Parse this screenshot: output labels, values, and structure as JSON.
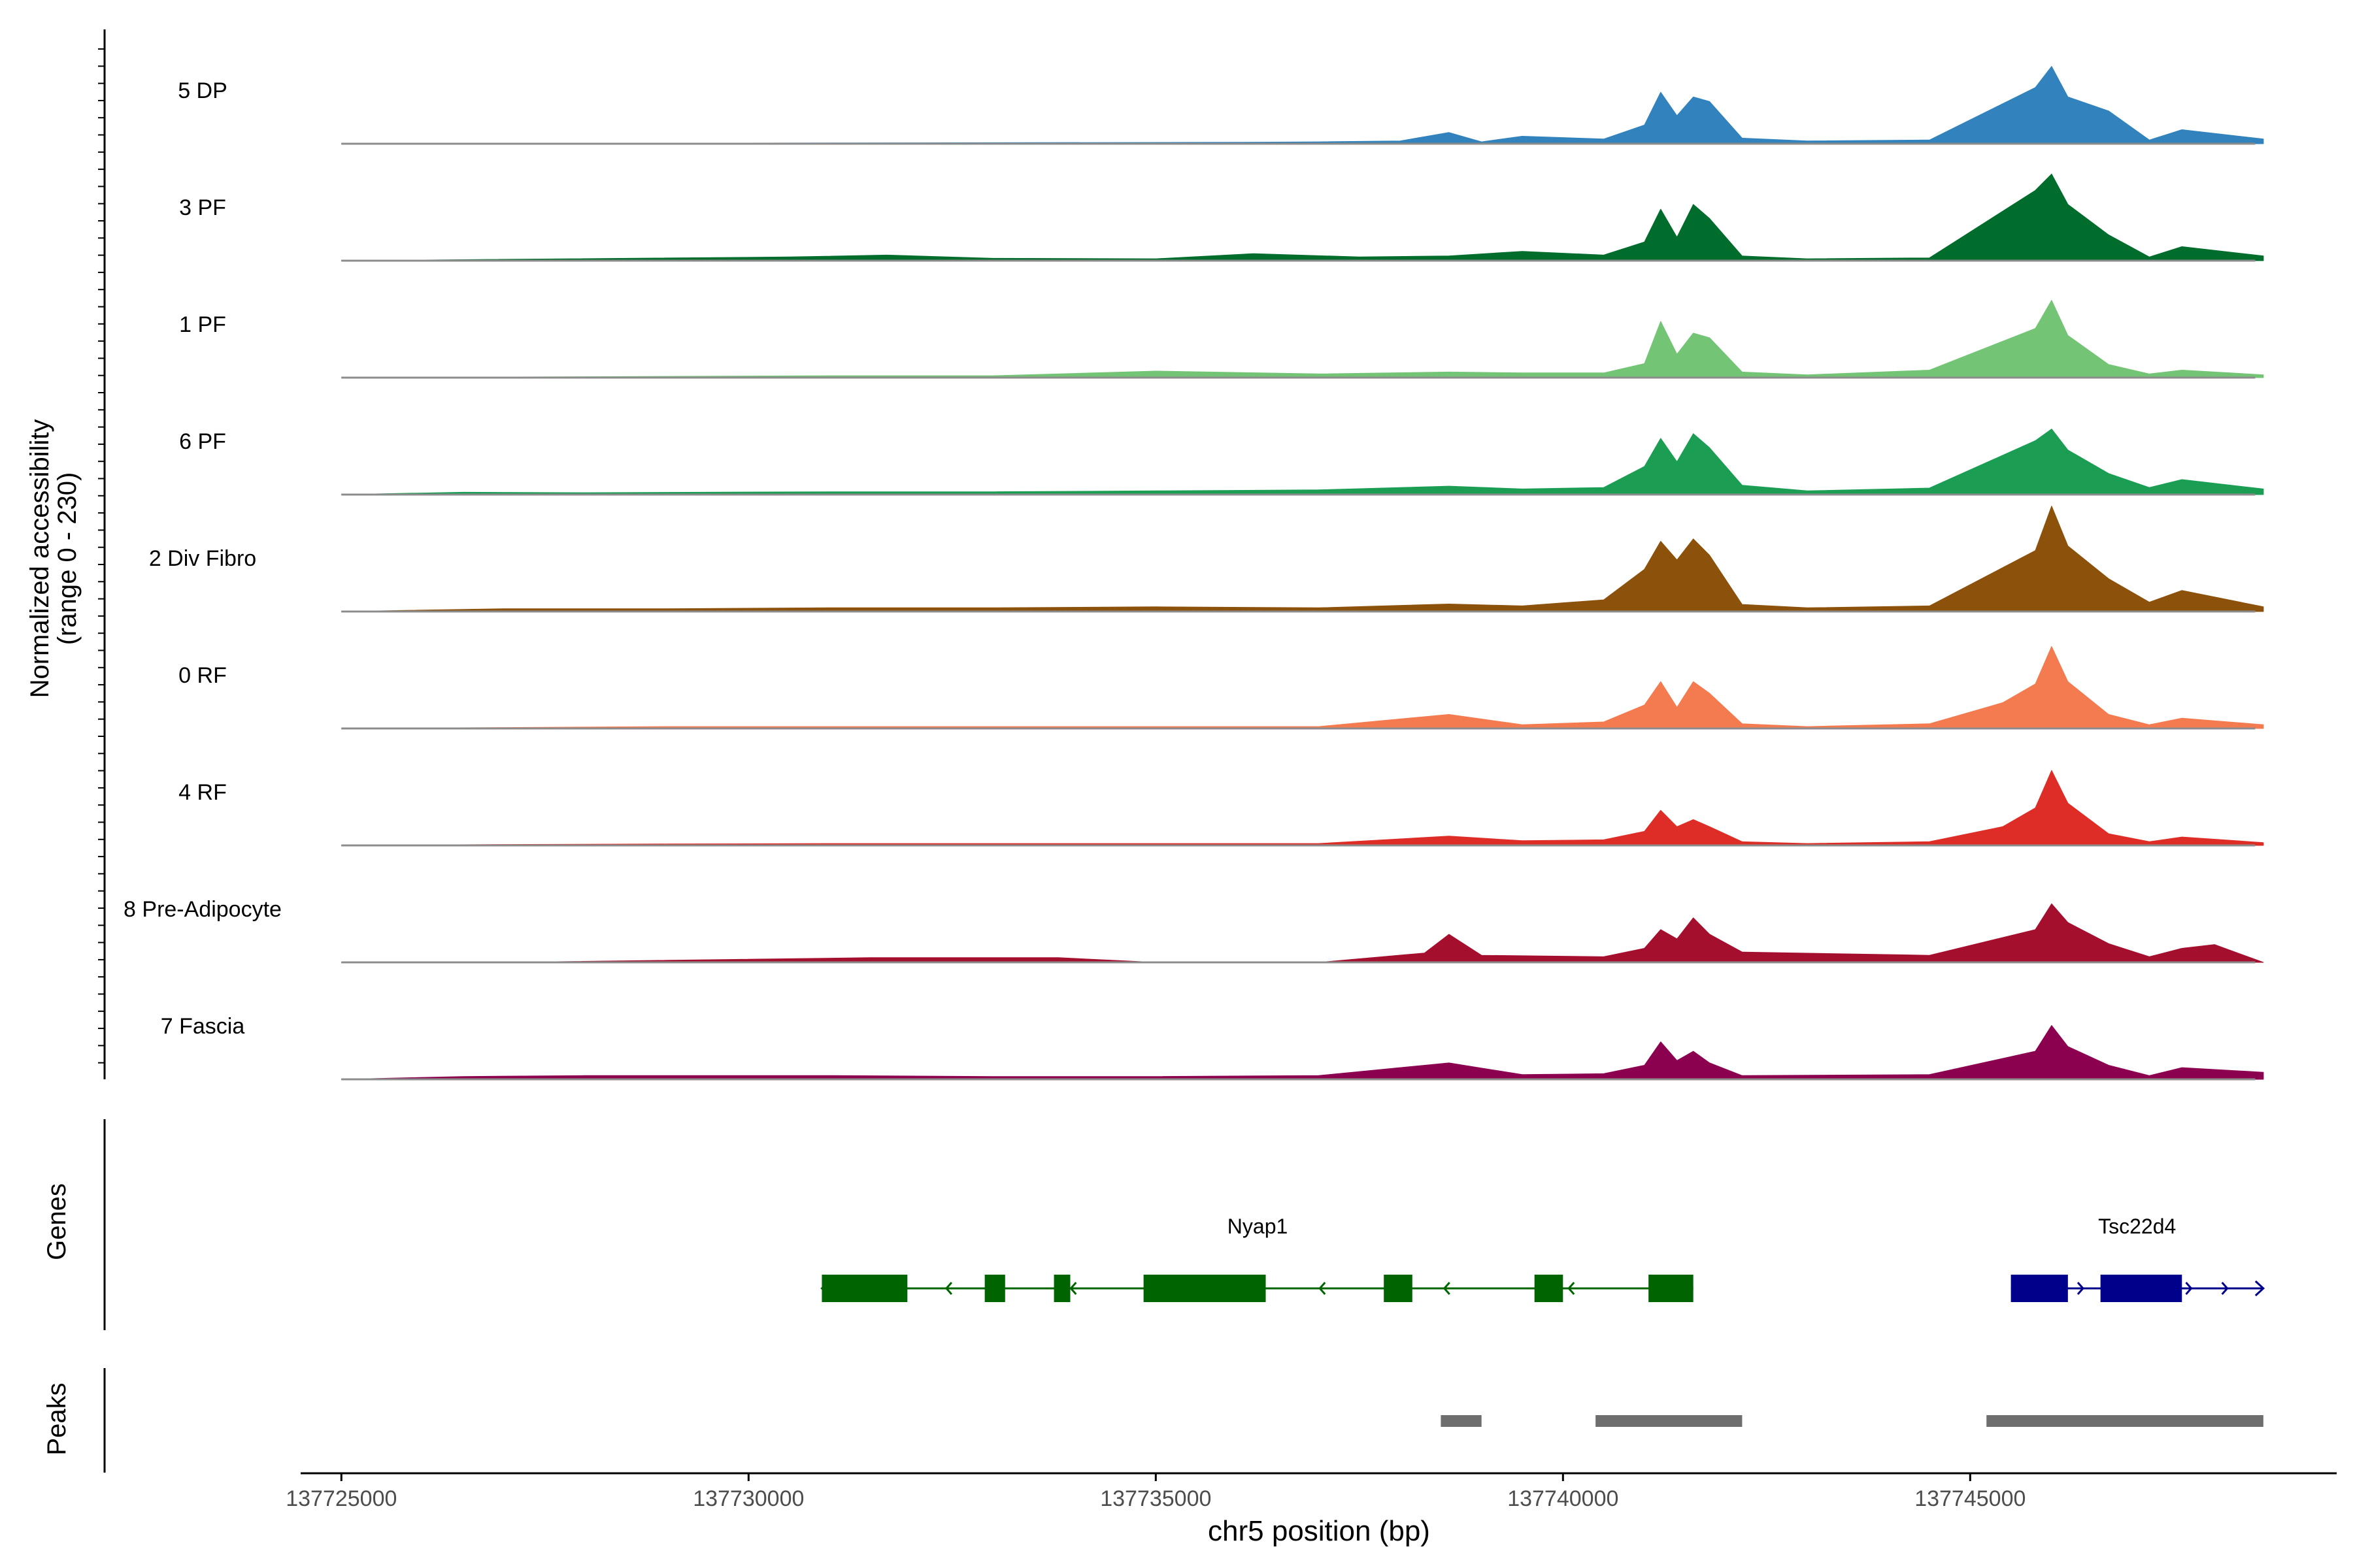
{
  "chart_data": {
    "type": "area",
    "chromosome": "chr5",
    "xlim": [
      137724500,
      137749500
    ],
    "xticks": [
      137725000,
      137730000,
      137735000,
      137740000,
      137745000
    ],
    "tick_labels": [
      "137725000",
      "137730000",
      "137735000",
      "137740000",
      "137745000"
    ],
    "xlabel": "chr5 position (bp)",
    "ylabel_line1": "Normalized accessibility",
    "ylabel_line2": "(range 0 - 230)",
    "ylim": [
      0,
      230
    ],
    "track_labels": {
      "genes": "Genes",
      "peaks": "Peaks"
    },
    "series": [
      {
        "name": "5 DP",
        "color": "#3182bd",
        "x": [
          137725000,
          137728000,
          137732000,
          137736000,
          137737000,
          137738000,
          137738600,
          137739000,
          137739500,
          137740500,
          137741000,
          137741200,
          137741400,
          137741600,
          137741800,
          137742200,
          137743000,
          137744500,
          137745800,
          137746000,
          137746200,
          137746700,
          137747200,
          137747600,
          137748600
        ],
        "values": [
          0,
          1,
          2,
          3,
          4,
          6,
          24,
          4,
          16,
          10,
          40,
          110,
          60,
          100,
          90,
          12,
          6,
          8,
          120,
          165,
          100,
          70,
          8,
          30,
          10
        ]
      },
      {
        "name": "3 PF",
        "color": "#006d2c",
        "x": [
          137725000,
          137730500,
          137731700,
          137733000,
          137735000,
          137736200,
          137737500,
          137738600,
          137739500,
          137740500,
          137741000,
          137741200,
          137741400,
          137741600,
          137741800,
          137742200,
          137743000,
          137744500,
          137745800,
          137746000,
          137746200,
          137746700,
          137747200,
          137747600,
          137748600
        ],
        "values": [
          0,
          8,
          12,
          5,
          4,
          15,
          8,
          10,
          20,
          12,
          40,
          110,
          50,
          120,
          90,
          10,
          4,
          6,
          150,
          185,
          120,
          55,
          8,
          30,
          10
        ]
      },
      {
        "name": "1 PF",
        "color": "#74c476",
        "x": [
          137725000,
          137728000,
          137731000,
          137733000,
          137735000,
          137737000,
          137738600,
          137739500,
          137740500,
          137741000,
          137741200,
          137741400,
          137741600,
          137741800,
          137742200,
          137743000,
          137744500,
          137745800,
          137746000,
          137746200,
          137746700,
          137747200,
          137747600,
          137748600
        ],
        "values": [
          0,
          2,
          4,
          4,
          14,
          8,
          12,
          10,
          10,
          30,
          120,
          50,
          95,
          85,
          12,
          6,
          16,
          105,
          165,
          90,
          28,
          8,
          16,
          6
        ]
      },
      {
        "name": "6 PF",
        "color": "#1b9e54",
        "x": [
          137725000,
          137726500,
          137728000,
          137731000,
          137733000,
          137735000,
          137737000,
          137738600,
          137739500,
          137740500,
          137741000,
          137741200,
          137741400,
          137741600,
          137741800,
          137742200,
          137743000,
          137744500,
          137745800,
          137746000,
          137746200,
          137746700,
          137747200,
          137747600,
          137748600
        ],
        "values": [
          0,
          5,
          4,
          6,
          6,
          8,
          10,
          18,
          12,
          15,
          60,
          120,
          70,
          130,
          100,
          20,
          8,
          14,
          115,
          140,
          95,
          45,
          15,
          32,
          12
        ]
      },
      {
        "name": "2 Div Fibro",
        "color": "#8c510a",
        "x": [
          137725000,
          137727000,
          137729000,
          137731000,
          137733000,
          137735000,
          137737000,
          137738600,
          137739500,
          137740500,
          137741000,
          137741200,
          137741400,
          137741600,
          137741800,
          137742200,
          137743000,
          137744500,
          137745800,
          137746000,
          137746200,
          137746700,
          137747200,
          137747600,
          137748600
        ],
        "values": [
          0,
          6,
          6,
          8,
          8,
          10,
          8,
          16,
          12,
          25,
          90,
          150,
          110,
          155,
          120,
          15,
          8,
          12,
          130,
          225,
          140,
          70,
          20,
          45,
          10
        ]
      },
      {
        "name": "0 RF",
        "color": "#f47a4f",
        "x": [
          137725000,
          137727000,
          137729000,
          137731000,
          137733000,
          137735000,
          137737000,
          137738600,
          137739500,
          137740500,
          137741000,
          137741200,
          137741400,
          137741600,
          137741800,
          137742200,
          137743000,
          137744500,
          137745400,
          137745800,
          137746000,
          137746200,
          137746700,
          137747200,
          137747600,
          137748600
        ],
        "values": [
          0,
          2,
          4,
          4,
          4,
          4,
          4,
          30,
          8,
          14,
          50,
          100,
          45,
          100,
          75,
          10,
          4,
          10,
          55,
          95,
          175,
          100,
          30,
          8,
          22,
          8
        ]
      },
      {
        "name": "4 RF",
        "color": "#de2d26",
        "x": [
          137725000,
          137727000,
          137729000,
          137731000,
          137733000,
          137735000,
          137737000,
          137738600,
          137739500,
          137740500,
          137741000,
          137741200,
          137741400,
          137741600,
          137741800,
          137742200,
          137743000,
          137744500,
          137745400,
          137745800,
          137746000,
          137746200,
          137746700,
          137747200,
          137747600,
          137748600
        ],
        "values": [
          0,
          2,
          3,
          4,
          4,
          4,
          4,
          20,
          10,
          12,
          30,
          75,
          40,
          55,
          40,
          8,
          4,
          8,
          40,
          80,
          160,
          90,
          25,
          8,
          18,
          6
        ]
      },
      {
        "name": "8 Pre-Adipocyte",
        "color": "#a50f2e",
        "x": [
          137725000,
          137727000,
          137731500,
          137732000,
          137733800,
          137735000,
          137737000,
          137738300,
          137738600,
          137739000,
          137740500,
          137741000,
          137741200,
          137741400,
          137741600,
          137741800,
          137742200,
          137744500,
          137745800,
          137746000,
          137746200,
          137746700,
          137747200,
          137747600,
          137748000,
          137748600
        ],
        "values": [
          0,
          0,
          10,
          10,
          10,
          0,
          0,
          20,
          60,
          15,
          12,
          30,
          70,
          50,
          95,
          60,
          22,
          15,
          70,
          125,
          85,
          40,
          12,
          30,
          38,
          0
        ]
      },
      {
        "name": "7 Fascia",
        "color": "#8c0050",
        "x": [
          137725000,
          137726500,
          137728000,
          137731000,
          137733000,
          137735000,
          137737000,
          137738600,
          137739500,
          137740500,
          137741000,
          137741200,
          137741400,
          137741600,
          137741800,
          137742200,
          137744500,
          137745800,
          137746000,
          137746200,
          137746700,
          137747200,
          137747600,
          137748600
        ],
        "values": [
          0,
          6,
          8,
          8,
          6,
          6,
          8,
          35,
          10,
          12,
          30,
          80,
          40,
          60,
          35,
          8,
          10,
          60,
          115,
          70,
          30,
          8,
          25,
          15
        ]
      }
    ],
    "genes": [
      {
        "name": "Nyap1",
        "strand": "-",
        "start": 137730900,
        "end": 137741600,
        "color": "#006400",
        "exons": [
          [
            137730900,
            137731950
          ],
          [
            137732900,
            137733150
          ],
          [
            137733750,
            137733950
          ],
          [
            137734850,
            137736350
          ],
          [
            137737800,
            137738150
          ],
          [
            137739650,
            137740000
          ],
          [
            137741050,
            137741600
          ]
        ]
      },
      {
        "name": "Tsc22d4",
        "strand": "+",
        "start": 137745500,
        "end": 137748600,
        "color": "#00008b",
        "exons": [
          [
            137745500,
            137746200
          ],
          [
            137746600,
            137747600
          ]
        ]
      }
    ],
    "peaks": [
      [
        137738500,
        137739000
      ],
      [
        137740400,
        137742200
      ],
      [
        137745200,
        137748600
      ]
    ]
  }
}
